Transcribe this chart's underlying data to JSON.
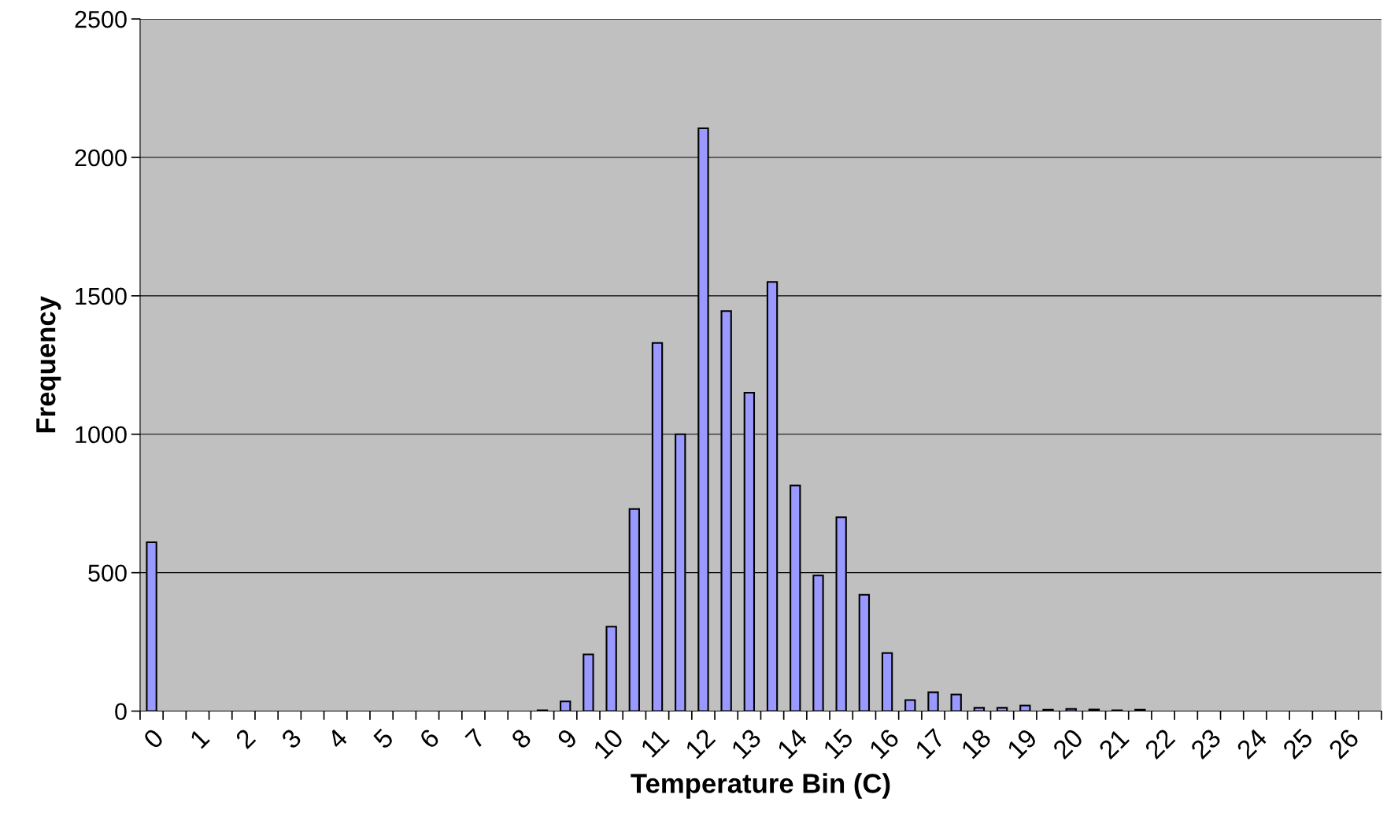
{
  "chart_data": {
    "type": "bar",
    "xlabel": "Temperature Bin (C)",
    "ylabel": "Frequency",
    "categories": [
      "0",
      null,
      "1",
      null,
      "2",
      null,
      "3",
      null,
      "4",
      null,
      "5",
      null,
      "6",
      null,
      "7",
      null,
      "8",
      null,
      "9",
      null,
      "10",
      null,
      "11",
      null,
      "12",
      null,
      "13",
      null,
      "14",
      null,
      "15",
      null,
      "16",
      null,
      "17",
      null,
      "18",
      null,
      "19",
      null,
      "20",
      null,
      "21",
      null,
      "22",
      null,
      "23",
      null,
      "24",
      null,
      "25",
      null,
      "26",
      null
    ],
    "values": [
      610,
      0,
      0,
      0,
      0,
      0,
      0,
      0,
      0,
      0,
      0,
      0,
      0,
      0,
      0,
      0,
      0,
      3,
      35,
      205,
      305,
      730,
      1330,
      1000,
      2105,
      1445,
      1150,
      1550,
      815,
      490,
      700,
      420,
      210,
      40,
      68,
      60,
      12,
      12,
      20,
      5,
      8,
      6,
      3,
      5,
      null,
      null,
      null,
      null,
      0,
      0,
      0,
      0,
      0,
      0
    ],
    "color": "#9999ff",
    "ylim": [
      0,
      2500
    ],
    "yticks": [
      0,
      500,
      1000,
      1500,
      2000,
      2500
    ],
    "grid": "y",
    "legend": false
  }
}
